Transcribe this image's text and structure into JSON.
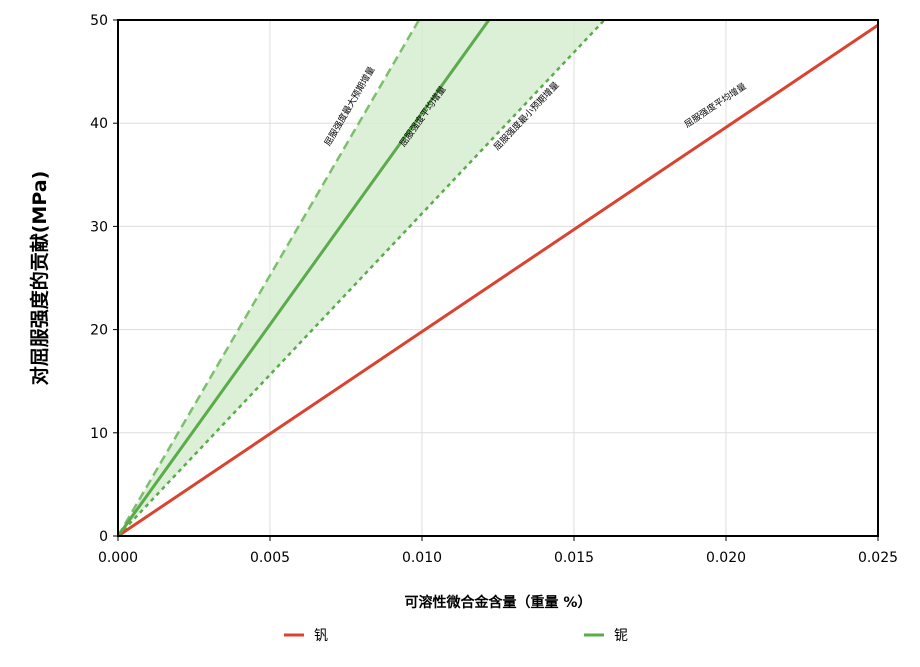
{
  "chart_data": {
    "type": "line",
    "xlabel": "可溶性微合金含量（重量 %）",
    "ylabel": "对屈服强度的贡献(MPa)",
    "xlim": [
      0,
      0.025
    ],
    "ylim": [
      0,
      50
    ],
    "x_ticks": [
      "0.000",
      "0.005",
      "0.010",
      "0.015",
      "0.020",
      "0.025"
    ],
    "y_ticks": [
      "0",
      "10",
      "20",
      "30",
      "40",
      "50"
    ],
    "grid": true,
    "legend_position": "bottom",
    "series": [
      {
        "name": "钒",
        "color": "#d9432f",
        "style": "solid",
        "x": [
          0,
          0.025
        ],
        "y": [
          0,
          49.5
        ]
      },
      {
        "name": "铌",
        "color": "#5aab4a",
        "style": "solid",
        "x": [
          0,
          0.0122
        ],
        "y": [
          0,
          50
        ]
      }
    ],
    "band_lines": [
      {
        "label": "屈服强度最大预期增量",
        "color": "#7dbf6e",
        "style": "dashed",
        "x": [
          0,
          0.0099
        ],
        "y": [
          0,
          50
        ]
      },
      {
        "label": "屈服强度最小预期增量",
        "color": "#5aab4a",
        "style": "dotted",
        "x": [
          0,
          0.016
        ],
        "y": [
          0,
          50
        ]
      }
    ],
    "band_fill_color": "#d6ecd0",
    "annotations": [
      {
        "text": "屈服强度最大预期增量",
        "x": 0.0077,
        "y": 41.5,
        "slope_of": "band_max"
      },
      {
        "text": "屈服强度平均增量",
        "x": 0.0101,
        "y": 40.5,
        "slope_of": "nb"
      },
      {
        "text": "屈服强度最小预期增量",
        "x": 0.0135,
        "y": 40.5,
        "slope_of": "band_min"
      },
      {
        "text": "屈服强度平均增量",
        "x": 0.0197,
        "y": 41.5,
        "slope_of": "v"
      }
    ]
  }
}
